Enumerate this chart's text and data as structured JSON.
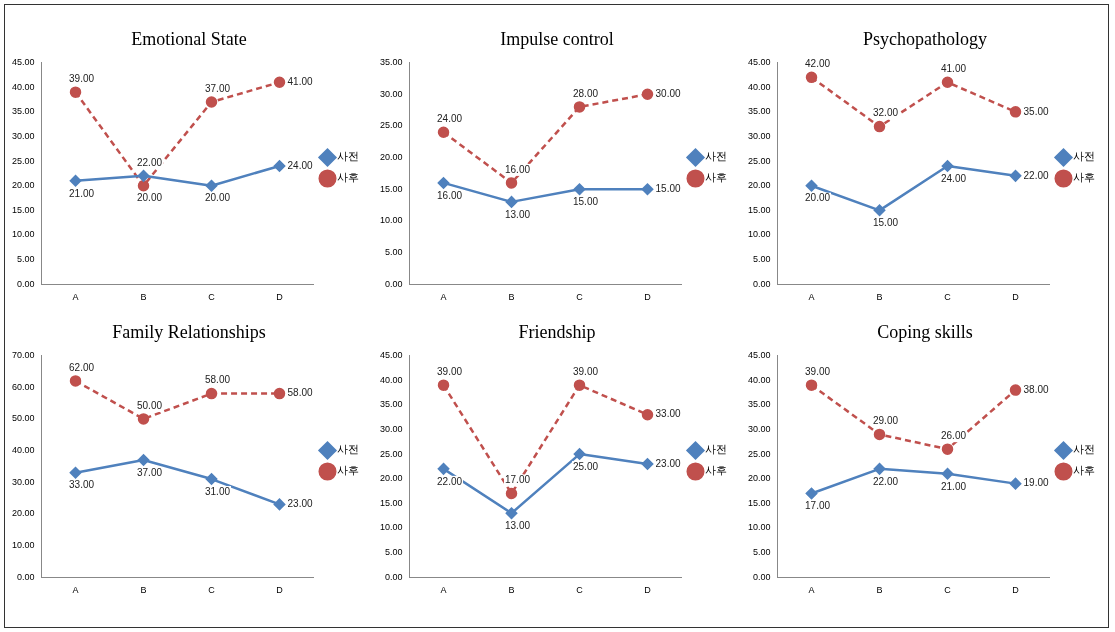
{
  "chart_data": [
    {
      "type": "line",
      "title": "Emotional State",
      "categories": [
        "A",
        "B",
        "C",
        "D"
      ],
      "ylim": [
        0,
        45
      ],
      "yticks": [
        {
          "value": 0,
          "label": "0.00"
        },
        {
          "value": 5,
          "label": "5.00"
        },
        {
          "value": 10,
          "label": "10.00"
        },
        {
          "value": 15,
          "label": "15.00"
        },
        {
          "value": 20,
          "label": "20.00"
        },
        {
          "value": 25,
          "label": "25.00"
        },
        {
          "value": 30,
          "label": "30.00"
        },
        {
          "value": 35,
          "label": "35.00"
        },
        {
          "value": 40,
          "label": "40.00"
        },
        {
          "value": 45,
          "label": "45.00"
        }
      ],
      "grid": false,
      "legend": "right",
      "series": [
        {
          "name": "사전",
          "color": "#4f81bd",
          "marker": "diamond",
          "line_style": "solid",
          "values": [
            21,
            22,
            20,
            24
          ],
          "value_labels": [
            "21.00",
            "22.00",
            "20.00",
            "24.00"
          ]
        },
        {
          "name": "사후",
          "color": "#c0504d",
          "marker": "circle",
          "line_style": "dashed",
          "values": [
            39,
            20,
            37,
            41
          ],
          "value_labels": [
            "39.00",
            "20.00",
            "37.00",
            "41.00"
          ]
        }
      ]
    },
    {
      "type": "line",
      "title": "Impulse control",
      "categories": [
        "A",
        "B",
        "C",
        "D"
      ],
      "ylim": [
        0,
        35
      ],
      "yticks": [
        {
          "value": 0,
          "label": "0.00"
        },
        {
          "value": 5,
          "label": "5.00"
        },
        {
          "value": 10,
          "label": "10.00"
        },
        {
          "value": 15,
          "label": "15.00"
        },
        {
          "value": 20,
          "label": "20.00"
        },
        {
          "value": 25,
          "label": "25.00"
        },
        {
          "value": 30,
          "label": "30.00"
        },
        {
          "value": 35,
          "label": "35.00"
        }
      ],
      "grid": false,
      "legend": "right",
      "series": [
        {
          "name": "사전",
          "color": "#4f81bd",
          "marker": "diamond",
          "line_style": "solid",
          "values": [
            16,
            13,
            15,
            15
          ],
          "value_labels": [
            "16.00",
            "13.00",
            "15.00",
            "15.00"
          ]
        },
        {
          "name": "사후",
          "color": "#c0504d",
          "marker": "circle",
          "line_style": "dashed",
          "values": [
            24,
            16,
            28,
            30
          ],
          "value_labels": [
            "24.00",
            "16.00",
            "28.00",
            "30.00"
          ]
        }
      ]
    },
    {
      "type": "line",
      "title": "Psychopathology",
      "categories": [
        "A",
        "B",
        "C",
        "D"
      ],
      "ylim": [
        0,
        45
      ],
      "yticks": [
        {
          "value": 0,
          "label": "0.00"
        },
        {
          "value": 5,
          "label": "5.00"
        },
        {
          "value": 10,
          "label": "10.00"
        },
        {
          "value": 15,
          "label": "15.00"
        },
        {
          "value": 20,
          "label": "20.00"
        },
        {
          "value": 25,
          "label": "25.00"
        },
        {
          "value": 30,
          "label": "30.00"
        },
        {
          "value": 35,
          "label": "35.00"
        },
        {
          "value": 40,
          "label": "40.00"
        },
        {
          "value": 45,
          "label": "45.00"
        }
      ],
      "grid": false,
      "legend": "right",
      "series": [
        {
          "name": "사전",
          "color": "#4f81bd",
          "marker": "diamond",
          "line_style": "solid",
          "values": [
            20,
            15,
            24,
            22
          ],
          "value_labels": [
            "20.00",
            "15.00",
            "24.00",
            "22.00"
          ]
        },
        {
          "name": "사후",
          "color": "#c0504d",
          "marker": "circle",
          "line_style": "dashed",
          "values": [
            42,
            32,
            41,
            35
          ],
          "value_labels": [
            "42.00",
            "32.00",
            "41.00",
            "35.00"
          ]
        }
      ]
    },
    {
      "type": "line",
      "title": "Family Relationships",
      "categories": [
        "A",
        "B",
        "C",
        "D"
      ],
      "ylim": [
        0,
        70
      ],
      "yticks": [
        {
          "value": 0,
          "label": "0.00"
        },
        {
          "value": 10,
          "label": "10.00"
        },
        {
          "value": 20,
          "label": "20.00"
        },
        {
          "value": 30,
          "label": "30.00"
        },
        {
          "value": 40,
          "label": "40.00"
        },
        {
          "value": 50,
          "label": "50.00"
        },
        {
          "value": 60,
          "label": "60.00"
        },
        {
          "value": 70,
          "label": "70.00"
        }
      ],
      "grid": false,
      "legend": "right",
      "series": [
        {
          "name": "사전",
          "color": "#4f81bd",
          "marker": "diamond",
          "line_style": "solid",
          "values": [
            33,
            37,
            31,
            23
          ],
          "value_labels": [
            "33.00",
            "37.00",
            "31.00",
            "23.00"
          ]
        },
        {
          "name": "사후",
          "color": "#c0504d",
          "marker": "circle",
          "line_style": "dashed",
          "values": [
            62,
            50,
            58,
            58
          ],
          "value_labels": [
            "62.00",
            "50.00",
            "58.00",
            "58.00"
          ]
        }
      ]
    },
    {
      "type": "line",
      "title": "Friendship",
      "categories": [
        "A",
        "B",
        "C",
        "D"
      ],
      "ylim": [
        0,
        45
      ],
      "yticks": [
        {
          "value": 0,
          "label": "0.00"
        },
        {
          "value": 5,
          "label": "5.00"
        },
        {
          "value": 10,
          "label": "10.00"
        },
        {
          "value": 15,
          "label": "15.00"
        },
        {
          "value": 20,
          "label": "20.00"
        },
        {
          "value": 25,
          "label": "25.00"
        },
        {
          "value": 30,
          "label": "30.00"
        },
        {
          "value": 35,
          "label": "35.00"
        },
        {
          "value": 40,
          "label": "40.00"
        },
        {
          "value": 45,
          "label": "45.00"
        }
      ],
      "grid": false,
      "legend": "right",
      "series": [
        {
          "name": "사전",
          "color": "#4f81bd",
          "marker": "diamond",
          "line_style": "solid",
          "values": [
            22,
            13,
            25,
            23
          ],
          "value_labels": [
            "22.00",
            "13.00",
            "25.00",
            "23.00"
          ]
        },
        {
          "name": "사후",
          "color": "#c0504d",
          "marker": "circle",
          "line_style": "dashed",
          "values": [
            39,
            17,
            39,
            33
          ],
          "value_labels": [
            "39.00",
            "17.00",
            "39.00",
            "33.00"
          ]
        }
      ]
    },
    {
      "type": "line",
      "title": "Coping skills",
      "categories": [
        "A",
        "B",
        "C",
        "D"
      ],
      "ylim": [
        0,
        45
      ],
      "yticks": [
        {
          "value": 0,
          "label": "0.00"
        },
        {
          "value": 5,
          "label": "5.00"
        },
        {
          "value": 10,
          "label": "10.00"
        },
        {
          "value": 15,
          "label": "15.00"
        },
        {
          "value": 20,
          "label": "20.00"
        },
        {
          "value": 25,
          "label": "25.00"
        },
        {
          "value": 30,
          "label": "30.00"
        },
        {
          "value": 35,
          "label": "35.00"
        },
        {
          "value": 40,
          "label": "40.00"
        },
        {
          "value": 45,
          "label": "45.00"
        }
      ],
      "grid": false,
      "legend": "right",
      "series": [
        {
          "name": "사전",
          "color": "#4f81bd",
          "marker": "diamond",
          "line_style": "solid",
          "values": [
            17,
            22,
            21,
            19
          ],
          "value_labels": [
            "17.00",
            "22.00",
            "21.00",
            "19.00"
          ]
        },
        {
          "name": "사후",
          "color": "#c0504d",
          "marker": "circle",
          "line_style": "dashed",
          "values": [
            39,
            29,
            26,
            38
          ],
          "value_labels": [
            "39.00",
            "29.00",
            "26.00",
            "38.00"
          ]
        }
      ]
    }
  ]
}
